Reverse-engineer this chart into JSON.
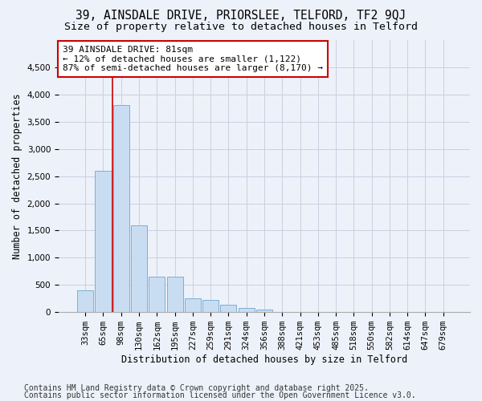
{
  "title1": "39, AINSDALE DRIVE, PRIORSLEE, TELFORD, TF2 9QJ",
  "title2": "Size of property relative to detached houses in Telford",
  "xlabel": "Distribution of detached houses by size in Telford",
  "ylabel": "Number of detached properties",
  "categories": [
    "33sqm",
    "65sqm",
    "98sqm",
    "130sqm",
    "162sqm",
    "195sqm",
    "227sqm",
    "259sqm",
    "291sqm",
    "324sqm",
    "356sqm",
    "388sqm",
    "421sqm",
    "453sqm",
    "485sqm",
    "518sqm",
    "550sqm",
    "582sqm",
    "614sqm",
    "647sqm",
    "679sqm"
  ],
  "values": [
    400,
    2600,
    3800,
    1600,
    650,
    650,
    250,
    220,
    130,
    80,
    50,
    0,
    0,
    0,
    0,
    0,
    0,
    0,
    0,
    0,
    0
  ],
  "bar_color": "#c9ddf2",
  "bar_edge_color": "#7bafd4",
  "vline_x": 1.5,
  "vline_color": "#cc0000",
  "annotation_text": "39 AINSDALE DRIVE: 81sqm\n← 12% of detached houses are smaller (1,122)\n87% of semi-detached houses are larger (8,170) →",
  "annotation_box_color": "#ffffff",
  "annotation_box_edge_color": "#cc0000",
  "ylim": [
    0,
    5000
  ],
  "yticks": [
    0,
    500,
    1000,
    1500,
    2000,
    2500,
    3000,
    3500,
    4000,
    4500
  ],
  "footer1": "Contains HM Land Registry data © Crown copyright and database right 2025.",
  "footer2": "Contains public sector information licensed under the Open Government Licence v3.0.",
  "bg_color": "#edf1f9",
  "plot_bg_color": "#edf1f9",
  "grid_color": "#c8d0e0",
  "title_fontsize": 10.5,
  "subtitle_fontsize": 9.5,
  "tick_fontsize": 7.5,
  "label_fontsize": 8.5,
  "annotation_fontsize": 8,
  "footer_fontsize": 7
}
